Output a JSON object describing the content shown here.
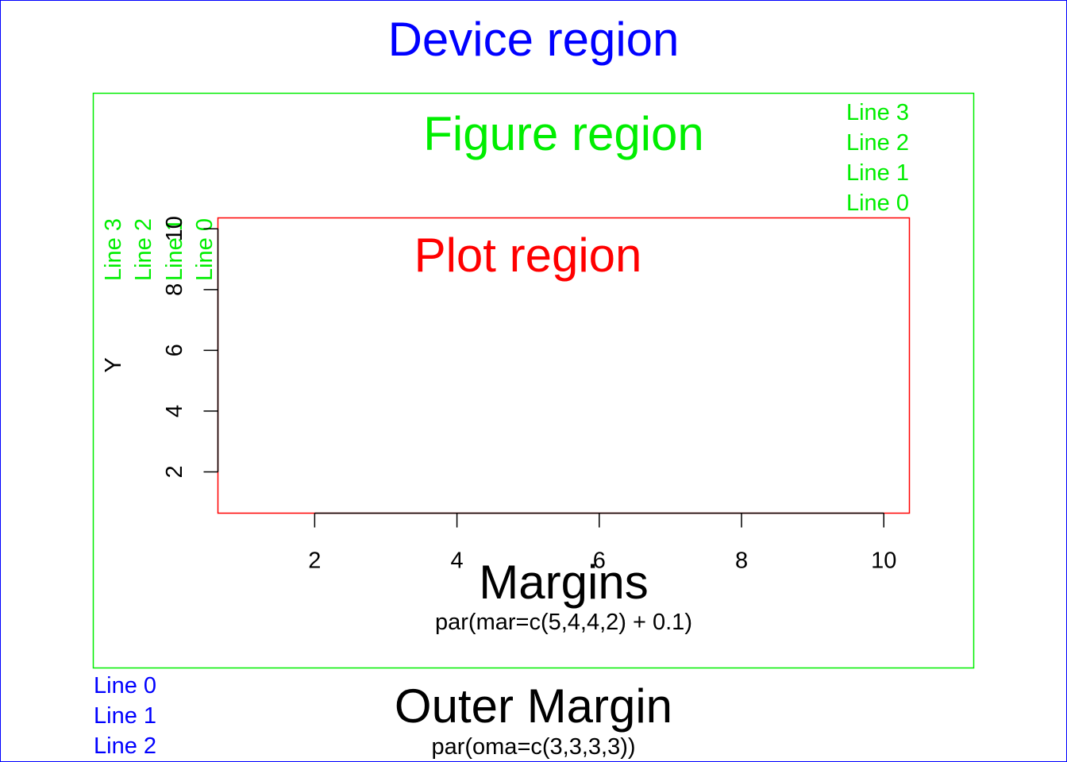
{
  "colors": {
    "device": "#0000ff",
    "figure": "#00ee00",
    "plot": "#ff0000",
    "text": "#000000"
  },
  "device": {
    "title": "Device region",
    "outer_margin_title": "Outer Margin",
    "outer_margin_caption": "par(oma=c(3,3,3,3))",
    "line_labels": [
      "Line 0",
      "Line 1",
      "Line 2"
    ]
  },
  "figure": {
    "title": "Figure region",
    "margins_title": "Margins",
    "margins_caption": "par(mar=c(5,4,4,2) + 0.1)",
    "top_line_labels": [
      "Line 3",
      "Line 2",
      "Line 1",
      "Line 0"
    ],
    "left_line_labels": [
      "Line 3",
      "Line 2",
      "Line 1",
      "Line 0"
    ]
  },
  "plot": {
    "title": "Plot region"
  },
  "chart_data": {
    "type": "scatter",
    "title": "",
    "xlabel": "",
    "ylabel": "Y",
    "x_ticks": [
      2,
      4,
      6,
      8,
      10
    ],
    "y_ticks": [
      2,
      4,
      6,
      8,
      10
    ],
    "xlim": [
      0.64,
      10.36
    ],
    "ylim": [
      0.64,
      10.36
    ],
    "grid": false,
    "points": []
  }
}
